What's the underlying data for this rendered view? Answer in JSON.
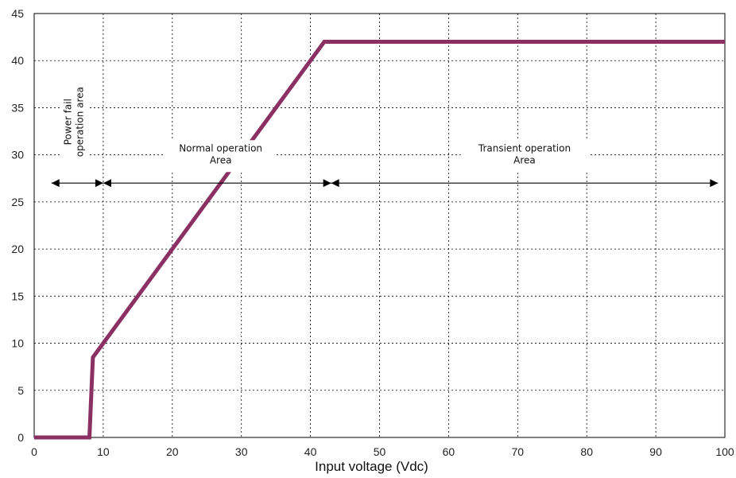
{
  "chart_data": {
    "type": "line",
    "title": "",
    "xlabel": "Input voltage (Vdc)",
    "ylabel": "",
    "xlim": [
      0,
      100
    ],
    "ylim": [
      0,
      45
    ],
    "x_ticks": [
      0,
      10,
      20,
      30,
      40,
      50,
      60,
      70,
      80,
      90,
      100
    ],
    "y_ticks": [
      0,
      5,
      10,
      15,
      20,
      25,
      30,
      35,
      40,
      45
    ],
    "grid": true,
    "legend": "none",
    "series": [
      {
        "color": "#8B3063",
        "x": [
          0,
          8,
          8.5,
          42,
          100
        ],
        "y": [
          0,
          0,
          8.5,
          42,
          42
        ]
      }
    ],
    "regions": [
      {
        "label_lines": [
          "Power fail",
          "operation area"
        ],
        "from": 2.5,
        "to": 10,
        "arrow_y": 27,
        "label_x": 6.5,
        "label_y": 33.5,
        "vertical": true
      },
      {
        "label_lines": [
          "Normal operation",
          "Area"
        ],
        "from": 10,
        "to": 43,
        "arrow_y": 27,
        "label_x": 27,
        "label_y": 30.2,
        "vertical": false
      },
      {
        "label_lines": [
          "Transient operation",
          "Area"
        ],
        "from": 43,
        "to": 99,
        "arrow_y": 27,
        "label_x": 71,
        "label_y": 30.2,
        "vertical": false
      }
    ]
  }
}
